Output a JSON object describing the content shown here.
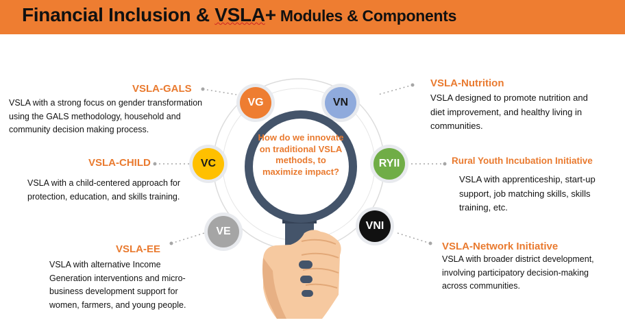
{
  "header": {
    "title_main": "Financial Inclusion & ",
    "title_vsla": "VSLA",
    "title_plus": "+",
    "title_sub": " Modules & Components",
    "bg_color": "#ee7d31"
  },
  "center_question": "How do we innovate on traditional VSLA methods, to maximize impact?",
  "modules": [
    {
      "code": "VG",
      "heading": "VSLA-GALS",
      "color": "#ee7d31",
      "text_color": "#ffffff",
      "description": "VSLA with a strong focus on gender transformation using the GALS methodology, household and community decision making process."
    },
    {
      "code": "VN",
      "heading": "VSLA-Nutrition",
      "color": "#8faadc",
      "text_color": "#1a1a1a",
      "description": "VSLA designed to promote nutrition and diet improvement, and healthy living in communities."
    },
    {
      "code": "VC",
      "heading": "VSLA-CHILD",
      "color": "#ffc000",
      "text_color": "#1a1a1a",
      "description": "VSLA with a child-centered approach for protection, education, and skills training."
    },
    {
      "code": "RYII",
      "heading": "Rural Youth Incubation Initiative",
      "color": "#70ad47",
      "text_color": "#ffffff",
      "description": "VSLA with apprenticeship, start-up support, job matching skills, skills training, etc."
    },
    {
      "code": "VE",
      "heading": "VSLA-EE",
      "color": "#a5a5a5",
      "text_color": "#ffffff",
      "description": "VSLA with alternative Income Generation interventions and micro-business development support for women, farmers, and young people."
    },
    {
      "code": "VNI",
      "heading": "VSLA-Network Initiative",
      "color": "#111111",
      "text_color": "#ffffff",
      "description": "VSLA with broader district development, involving participatory decision-making across communities."
    }
  ],
  "colors": {
    "accent": "#e97a2f",
    "lens_frame": "#44546a",
    "ring": "#d9d9d9",
    "hand": "#f6c9a0"
  }
}
